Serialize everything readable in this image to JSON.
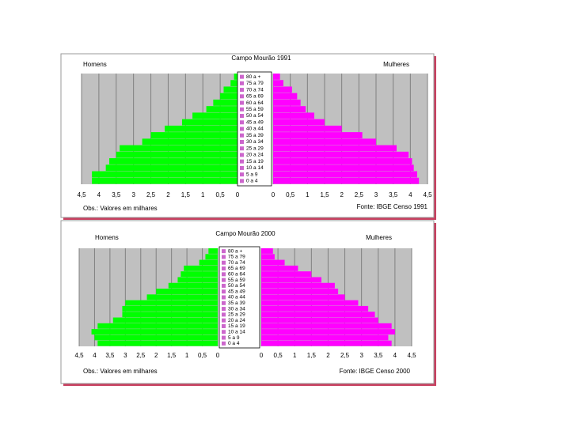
{
  "chart_data": [
    {
      "type": "pyramid",
      "title": "Campo Mourão 1991",
      "categories": [
        "80 a +",
        "75 a 79",
        "70 a 74",
        "65 a 69",
        "60 a 64",
        "55 a 59",
        "50 a 54",
        "45 a 49",
        "40 a 44",
        "35 a 39",
        "30 a 34",
        "25 a 29",
        "20 a 24",
        "15 a 19",
        "10 a 14",
        "5 a 9",
        "0 a 4"
      ],
      "series": [
        {
          "name": "Homens",
          "color": "#00ff00",
          "values": [
            0.1,
            0.2,
            0.4,
            0.5,
            0.7,
            0.9,
            1.3,
            1.6,
            2.1,
            2.5,
            2.75,
            3.4,
            3.5,
            3.7,
            3.8,
            4.2,
            4.2
          ]
        },
        {
          "name": "Mulheres",
          "color": "#ff00ff",
          "values": [
            0.2,
            0.3,
            0.55,
            0.7,
            0.8,
            0.95,
            1.2,
            1.5,
            2.0,
            2.6,
            3.0,
            3.6,
            3.95,
            4.05,
            4.1,
            4.2,
            4.25
          ]
        }
      ],
      "xlim": [
        0,
        4.5
      ],
      "xticks": [
        0,
        {
          "value": 0.5,
          "label": "0,5"
        },
        1,
        {
          "value": 1.5,
          "label": "1,5"
        },
        2,
        {
          "value": 2.5,
          "label": "2,5"
        },
        3,
        {
          "value": 3.5,
          "label": "3,5"
        },
        4,
        {
          "value": 4.5,
          "label": "4,5"
        }
      ],
      "grid": true,
      "note": "Obs.: Valores em milhares",
      "source": "Fonte: IBGE Censo 1991"
    },
    {
      "type": "pyramid",
      "title": "Campo Mourão 2000",
      "categories": [
        "80 a +",
        "75 a 79",
        "70 a 74",
        "65 a 69",
        "60 a 64",
        "55 a 59",
        "50 a 54",
        "45 a 49",
        "40 a 44",
        "35 a 39",
        "30 a 34",
        "25 a 29",
        "20 a 24",
        "15 a 19",
        "10 a 14",
        "5 a 9",
        "0 a 4"
      ],
      "series": [
        {
          "name": "Homens",
          "color": "#00ff00",
          "values": [
            0.3,
            0.4,
            0.6,
            1.1,
            1.2,
            1.3,
            1.6,
            2.0,
            2.3,
            3.0,
            3.1,
            3.1,
            3.4,
            3.9,
            4.1,
            4.0,
            3.9
          ]
        },
        {
          "name": "Mulheres",
          "color": "#ff00ff",
          "values": [
            0.35,
            0.4,
            0.7,
            1.1,
            1.5,
            1.8,
            2.2,
            2.3,
            2.5,
            2.9,
            3.2,
            3.4,
            3.5,
            3.9,
            4.0,
            3.8,
            3.9
          ]
        }
      ],
      "xlim": [
        0,
        4.5
      ],
      "xticks": [
        0,
        {
          "value": 0.5,
          "label": "0,5"
        },
        1,
        {
          "value": 1.5,
          "label": "1,5"
        },
        2,
        {
          "value": 2.5,
          "label": "2,5"
        },
        3,
        {
          "value": 3.5,
          "label": "3,5"
        },
        4,
        {
          "value": 4.5,
          "label": "4,5"
        }
      ],
      "grid": true,
      "note": "Obs.: Valores em milhares",
      "source": "Fonte: IBGE Censo 2000"
    }
  ]
}
